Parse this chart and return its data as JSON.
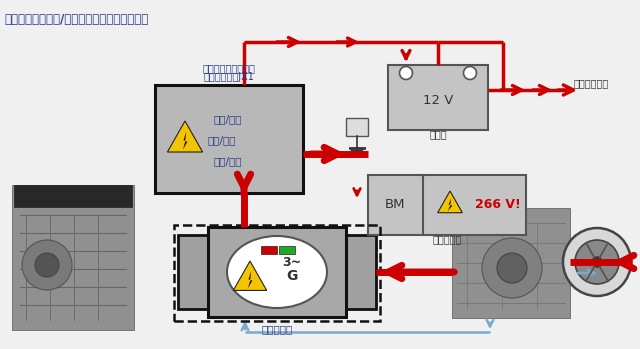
{
  "title": "发动机关闭时滑行/制动状态下的能量回收模式",
  "bg": "#f4f4f4",
  "red": "#cc0000",
  "blue": "#7aaad0",
  "yellow": "#f5c400",
  "gray_light": "#c0c0c0",
  "gray_med": "#a0a0a0",
  "gray_dark": "#808080",
  "black": "#111111",
  "text_dark": "#2a2a2a",
  "text_blue": "#2a3a8c",
  "label_title": "发动机关闭时滑行/制动状态下的能量回收模式",
  "label_elec1": "电驱动装置的功率和",
  "label_elec2": "控制电子装置JX1",
  "label_dc1": "直流/直流",
  "label_dc2": "交流/直流",
  "label_dc3": "直流/交流",
  "label_12v": "12 V",
  "label_battery": "蓄电池",
  "label_vehicle": "车辆电气系统",
  "label_bm": "BM",
  "label_266": "266 V!",
  "label_hv": "高压蓄电池",
  "label_g": "G",
  "label_3tilde": "3~",
  "label_gen": "发电机模式"
}
